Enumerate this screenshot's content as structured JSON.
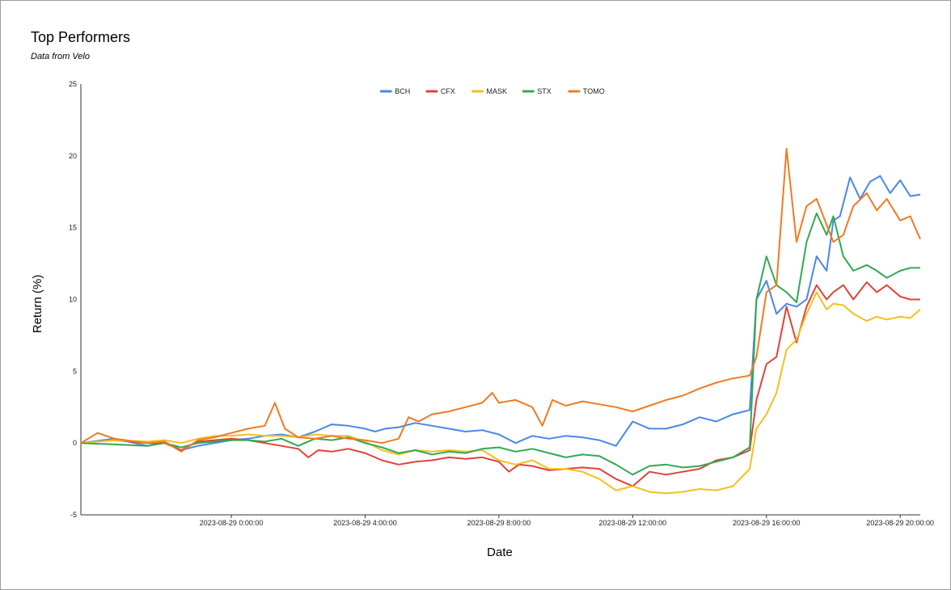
{
  "chart_data": {
    "type": "line",
    "title": "Top Performers",
    "subtitle": "Data from Velo",
    "xlabel": "Date",
    "ylabel": "Return (%)",
    "ylim": [
      -5,
      25
    ],
    "yticks": [
      -5,
      0,
      5,
      10,
      15,
      20,
      25
    ],
    "xlim_hours": [
      -4.5,
      20.6
    ],
    "xtick_hours": [
      0,
      4,
      8,
      12,
      16,
      20
    ],
    "xtick_labels": [
      "2023-08-29 0:00:00",
      "2023-08-29 4:00:00",
      "2023-08-29 8:00:00",
      "2023-08-29 12:00:00",
      "2023-08-29 16:00:00",
      "2023-08-29 20:00:00"
    ],
    "legend_position": "top",
    "grid": false,
    "series": [
      {
        "name": "BCH",
        "color": "#4a86e8",
        "points": [
          [
            -4.5,
            0.0
          ],
          [
            -3.5,
            0.3
          ],
          [
            -2.5,
            -0.2
          ],
          [
            -2.0,
            0.1
          ],
          [
            -1.5,
            -0.5
          ],
          [
            -1.0,
            -0.2
          ],
          [
            -0.5,
            0.0
          ],
          [
            0.0,
            0.2
          ],
          [
            0.5,
            0.3
          ],
          [
            1.0,
            0.5
          ],
          [
            1.5,
            0.6
          ],
          [
            2.0,
            0.4
          ],
          [
            2.5,
            0.8
          ],
          [
            3.0,
            1.3
          ],
          [
            3.5,
            1.2
          ],
          [
            4.0,
            1.0
          ],
          [
            4.3,
            0.8
          ],
          [
            4.6,
            1.0
          ],
          [
            5.0,
            1.1
          ],
          [
            5.5,
            1.4
          ],
          [
            6.0,
            1.2
          ],
          [
            6.5,
            1.0
          ],
          [
            7.0,
            0.8
          ],
          [
            7.5,
            0.9
          ],
          [
            8.0,
            0.6
          ],
          [
            8.5,
            0.0
          ],
          [
            8.8,
            0.3
          ],
          [
            9.0,
            0.5
          ],
          [
            9.5,
            0.3
          ],
          [
            10.0,
            0.5
          ],
          [
            10.5,
            0.4
          ],
          [
            11.0,
            0.2
          ],
          [
            11.5,
            -0.2
          ],
          [
            12.0,
            1.5
          ],
          [
            12.5,
            1.0
          ],
          [
            13.0,
            1.0
          ],
          [
            13.5,
            1.3
          ],
          [
            14.0,
            1.8
          ],
          [
            14.5,
            1.5
          ],
          [
            15.0,
            2.0
          ],
          [
            15.5,
            2.3
          ],
          [
            15.7,
            10.0
          ],
          [
            16.0,
            11.3
          ],
          [
            16.3,
            9.0
          ],
          [
            16.6,
            9.7
          ],
          [
            16.9,
            9.5
          ],
          [
            17.2,
            10.0
          ],
          [
            17.5,
            13.0
          ],
          [
            17.8,
            12.0
          ],
          [
            18.0,
            15.5
          ],
          [
            18.2,
            15.8
          ],
          [
            18.5,
            18.5
          ],
          [
            18.8,
            17.0
          ],
          [
            19.1,
            18.2
          ],
          [
            19.4,
            18.6
          ],
          [
            19.7,
            17.4
          ],
          [
            20.0,
            18.3
          ],
          [
            20.3,
            17.2
          ],
          [
            20.6,
            17.3
          ]
        ]
      },
      {
        "name": "CFX",
        "color": "#e0423a",
        "points": [
          [
            -4.5,
            0.0
          ],
          [
            -3.5,
            0.2
          ],
          [
            -2.5,
            0.0
          ],
          [
            -2.0,
            0.0
          ],
          [
            -1.5,
            -0.5
          ],
          [
            -1.0,
            0.1
          ],
          [
            -0.5,
            0.2
          ],
          [
            0.0,
            0.3
          ],
          [
            0.5,
            0.2
          ],
          [
            1.0,
            0.0
          ],
          [
            1.5,
            -0.2
          ],
          [
            2.0,
            -0.4
          ],
          [
            2.3,
            -1.0
          ],
          [
            2.6,
            -0.5
          ],
          [
            3.0,
            -0.6
          ],
          [
            3.5,
            -0.4
          ],
          [
            4.0,
            -0.7
          ],
          [
            4.5,
            -1.2
          ],
          [
            5.0,
            -1.5
          ],
          [
            5.5,
            -1.3
          ],
          [
            6.0,
            -1.2
          ],
          [
            6.5,
            -1.0
          ],
          [
            7.0,
            -1.1
          ],
          [
            7.5,
            -1.0
          ],
          [
            8.0,
            -1.3
          ],
          [
            8.3,
            -2.0
          ],
          [
            8.6,
            -1.5
          ],
          [
            9.0,
            -1.6
          ],
          [
            9.5,
            -1.9
          ],
          [
            10.0,
            -1.8
          ],
          [
            10.5,
            -1.7
          ],
          [
            11.0,
            -1.8
          ],
          [
            11.5,
            -2.5
          ],
          [
            12.0,
            -3.0
          ],
          [
            12.5,
            -2.0
          ],
          [
            13.0,
            -2.2
          ],
          [
            13.5,
            -2.0
          ],
          [
            14.0,
            -1.8
          ],
          [
            14.5,
            -1.2
          ],
          [
            15.0,
            -1.0
          ],
          [
            15.5,
            -0.5
          ],
          [
            15.7,
            3.0
          ],
          [
            16.0,
            5.5
          ],
          [
            16.3,
            6.0
          ],
          [
            16.6,
            9.5
          ],
          [
            16.9,
            7.0
          ],
          [
            17.2,
            9.5
          ],
          [
            17.5,
            11.0
          ],
          [
            17.8,
            10.0
          ],
          [
            18.0,
            10.5
          ],
          [
            18.3,
            11.0
          ],
          [
            18.6,
            10.0
          ],
          [
            19.0,
            11.2
          ],
          [
            19.3,
            10.5
          ],
          [
            19.6,
            11.0
          ],
          [
            20.0,
            10.2
          ],
          [
            20.3,
            10.0
          ],
          [
            20.6,
            10.0
          ]
        ]
      },
      {
        "name": "MASK",
        "color": "#f4c01e",
        "points": [
          [
            -4.5,
            0.0
          ],
          [
            -3.5,
            0.2
          ],
          [
            -2.5,
            0.1
          ],
          [
            -2.0,
            0.2
          ],
          [
            -1.5,
            0.0
          ],
          [
            -1.0,
            0.3
          ],
          [
            -0.5,
            0.5
          ],
          [
            0.0,
            0.5
          ],
          [
            0.5,
            0.6
          ],
          [
            1.0,
            0.5
          ],
          [
            1.5,
            0.5
          ],
          [
            2.0,
            0.4
          ],
          [
            2.5,
            0.6
          ],
          [
            3.0,
            0.5
          ],
          [
            3.5,
            0.5
          ],
          [
            4.0,
            0.1
          ],
          [
            4.5,
            -0.5
          ],
          [
            5.0,
            -0.8
          ],
          [
            5.5,
            -0.5
          ],
          [
            6.0,
            -0.6
          ],
          [
            6.5,
            -0.5
          ],
          [
            7.0,
            -0.6
          ],
          [
            7.5,
            -0.5
          ],
          [
            8.0,
            -1.2
          ],
          [
            8.5,
            -1.5
          ],
          [
            9.0,
            -1.2
          ],
          [
            9.5,
            -1.8
          ],
          [
            10.0,
            -1.8
          ],
          [
            10.5,
            -2.0
          ],
          [
            11.0,
            -2.5
          ],
          [
            11.5,
            -3.3
          ],
          [
            12.0,
            -3.0
          ],
          [
            12.5,
            -3.4
          ],
          [
            13.0,
            -3.5
          ],
          [
            13.5,
            -3.4
          ],
          [
            14.0,
            -3.2
          ],
          [
            14.5,
            -3.3
          ],
          [
            15.0,
            -3.0
          ],
          [
            15.5,
            -1.8
          ],
          [
            15.7,
            1.0
          ],
          [
            16.0,
            2.0
          ],
          [
            16.3,
            3.5
          ],
          [
            16.6,
            6.5
          ],
          [
            16.9,
            7.2
          ],
          [
            17.2,
            9.0
          ],
          [
            17.5,
            10.5
          ],
          [
            17.8,
            9.3
          ],
          [
            18.0,
            9.7
          ],
          [
            18.3,
            9.6
          ],
          [
            18.6,
            9.0
          ],
          [
            19.0,
            8.5
          ],
          [
            19.3,
            8.8
          ],
          [
            19.6,
            8.6
          ],
          [
            20.0,
            8.8
          ],
          [
            20.3,
            8.7
          ],
          [
            20.6,
            9.3
          ]
        ]
      },
      {
        "name": "STX",
        "color": "#34a853",
        "points": [
          [
            -4.5,
            0.0
          ],
          [
            -3.5,
            -0.1
          ],
          [
            -2.5,
            -0.2
          ],
          [
            -2.0,
            0.0
          ],
          [
            -1.5,
            -0.3
          ],
          [
            -1.0,
            0.0
          ],
          [
            -0.5,
            0.1
          ],
          [
            0.0,
            0.2
          ],
          [
            0.5,
            0.2
          ],
          [
            1.0,
            0.1
          ],
          [
            1.5,
            0.3
          ],
          [
            2.0,
            -0.2
          ],
          [
            2.5,
            0.3
          ],
          [
            3.0,
            0.2
          ],
          [
            3.5,
            0.4
          ],
          [
            4.0,
            0.0
          ],
          [
            4.5,
            -0.3
          ],
          [
            5.0,
            -0.7
          ],
          [
            5.5,
            -0.5
          ],
          [
            6.0,
            -0.8
          ],
          [
            6.5,
            -0.6
          ],
          [
            7.0,
            -0.7
          ],
          [
            7.5,
            -0.4
          ],
          [
            8.0,
            -0.3
          ],
          [
            8.5,
            -0.6
          ],
          [
            9.0,
            -0.4
          ],
          [
            9.5,
            -0.7
          ],
          [
            10.0,
            -1.0
          ],
          [
            10.5,
            -0.8
          ],
          [
            11.0,
            -0.9
          ],
          [
            11.5,
            -1.5
          ],
          [
            12.0,
            -2.2
          ],
          [
            12.5,
            -1.6
          ],
          [
            13.0,
            -1.5
          ],
          [
            13.5,
            -1.7
          ],
          [
            14.0,
            -1.6
          ],
          [
            14.5,
            -1.3
          ],
          [
            15.0,
            -1.0
          ],
          [
            15.5,
            -0.3
          ],
          [
            15.7,
            10.0
          ],
          [
            16.0,
            13.0
          ],
          [
            16.3,
            11.0
          ],
          [
            16.6,
            10.5
          ],
          [
            16.9,
            9.8
          ],
          [
            17.2,
            14.0
          ],
          [
            17.5,
            16.0
          ],
          [
            17.8,
            14.5
          ],
          [
            18.0,
            15.8
          ],
          [
            18.3,
            13.0
          ],
          [
            18.6,
            12.0
          ],
          [
            19.0,
            12.4
          ],
          [
            19.3,
            12.0
          ],
          [
            19.6,
            11.5
          ],
          [
            20.0,
            12.0
          ],
          [
            20.3,
            12.2
          ],
          [
            20.6,
            12.2
          ]
        ]
      },
      {
        "name": "TOMO",
        "color": "#f07a22",
        "points": [
          [
            -4.5,
            0.0
          ],
          [
            -4.0,
            0.7
          ],
          [
            -3.5,
            0.3
          ],
          [
            -2.5,
            0.0
          ],
          [
            -2.0,
            0.1
          ],
          [
            -1.5,
            -0.6
          ],
          [
            -1.0,
            0.2
          ],
          [
            -0.5,
            0.4
          ],
          [
            0.0,
            0.7
          ],
          [
            0.5,
            1.0
          ],
          [
            1.0,
            1.2
          ],
          [
            1.3,
            2.8
          ],
          [
            1.6,
            1.0
          ],
          [
            2.0,
            0.4
          ],
          [
            2.5,
            0.3
          ],
          [
            3.0,
            0.5
          ],
          [
            3.5,
            0.3
          ],
          [
            4.0,
            0.2
          ],
          [
            4.5,
            0.0
          ],
          [
            5.0,
            0.3
          ],
          [
            5.3,
            1.8
          ],
          [
            5.6,
            1.5
          ],
          [
            6.0,
            2.0
          ],
          [
            6.5,
            2.2
          ],
          [
            7.0,
            2.5
          ],
          [
            7.5,
            2.8
          ],
          [
            7.8,
            3.5
          ],
          [
            8.0,
            2.8
          ],
          [
            8.5,
            3.0
          ],
          [
            9.0,
            2.5
          ],
          [
            9.3,
            1.2
          ],
          [
            9.6,
            3.0
          ],
          [
            10.0,
            2.6
          ],
          [
            10.5,
            2.9
          ],
          [
            11.0,
            2.7
          ],
          [
            11.5,
            2.5
          ],
          [
            12.0,
            2.2
          ],
          [
            12.5,
            2.6
          ],
          [
            13.0,
            3.0
          ],
          [
            13.5,
            3.3
          ],
          [
            14.0,
            3.8
          ],
          [
            14.5,
            4.2
          ],
          [
            15.0,
            4.5
          ],
          [
            15.5,
            4.7
          ],
          [
            15.7,
            6.0
          ],
          [
            16.0,
            10.5
          ],
          [
            16.3,
            11.0
          ],
          [
            16.6,
            20.5
          ],
          [
            16.9,
            14.0
          ],
          [
            17.2,
            16.5
          ],
          [
            17.5,
            17.0
          ],
          [
            17.8,
            15.2
          ],
          [
            18.0,
            14.0
          ],
          [
            18.3,
            14.5
          ],
          [
            18.6,
            16.5
          ],
          [
            19.0,
            17.4
          ],
          [
            19.3,
            16.2
          ],
          [
            19.6,
            17.0
          ],
          [
            20.0,
            15.5
          ],
          [
            20.3,
            15.8
          ],
          [
            20.6,
            14.2
          ]
        ]
      }
    ]
  }
}
